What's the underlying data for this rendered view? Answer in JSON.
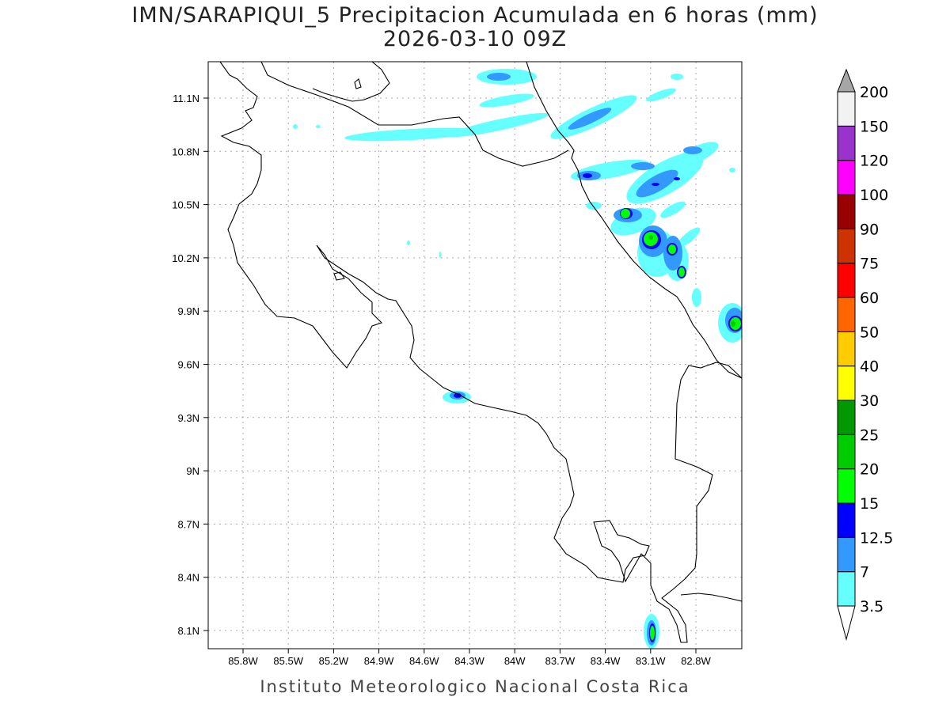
{
  "title": "IMN/SARAPIQUI_5 Precipitacion Acumulada en 6 horas (mm)",
  "subtitle": "2026-03-10 09Z",
  "footer": "Instituto Meteorologico Nacional Costa Rica",
  "map": {
    "lon_labels": [
      "85.8W",
      "85.5W",
      "85.2W",
      "84.9W",
      "84.6W",
      "84.3W",
      "84W",
      "83.7W",
      "83.4W",
      "83.1W",
      "82.8W"
    ],
    "lat_labels": [
      "11.1N",
      "10.8N",
      "10.5N",
      "10.2N",
      "9.9N",
      "9.6N",
      "9.3N",
      "9N",
      "8.7N",
      "8.4N",
      "8.1N"
    ]
  },
  "colorbar": {
    "levels": [
      "3.5",
      "7",
      "12.5",
      "15",
      "20",
      "25",
      "30",
      "40",
      "50",
      "60",
      "75",
      "90",
      "100",
      "120",
      "150",
      "200"
    ],
    "colors": [
      "#66ffff",
      "#3399ff",
      "#0000ff",
      "#00ff00",
      "#00cc00",
      "#009900",
      "#ffff00",
      "#ffcc00",
      "#ff6600",
      "#ff0000",
      "#cc3300",
      "#990000",
      "#ff00ff",
      "#9933cc",
      "#f2f2f2"
    ],
    "over_color": "#a6a6a6",
    "under_color": "#ffffff"
  }
}
